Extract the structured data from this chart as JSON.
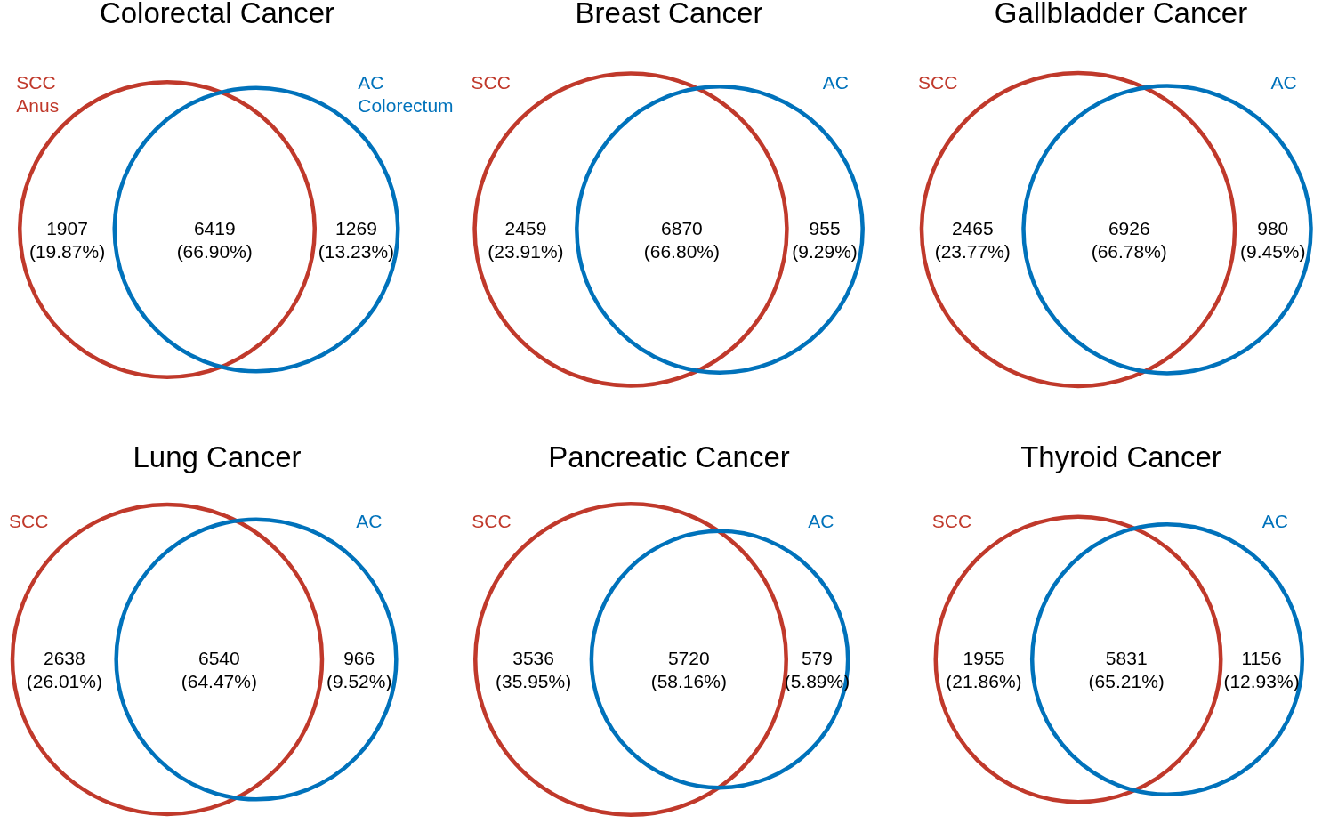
{
  "chart_data": [
    {
      "type": "other",
      "title": "Colorectal Cancer",
      "categories": [
        "SCC Anus",
        null,
        "AC Colorectum"
      ],
      "values": [
        1907,
        6419,
        1269
      ],
      "value_labels": [
        "1907 (19.87%)",
        "6419 (66.90%)",
        "1269 (13.23%)"
      ],
      "colors": [
        "#c0392b",
        null,
        "#0072bb"
      ]
    },
    {
      "type": "other",
      "title": "Breast Cancer",
      "categories": [
        "SCC",
        null,
        "AC"
      ],
      "values": [
        2459,
        6870,
        955
      ],
      "value_labels": [
        "2459 (23.91%)",
        "6870 (66.80%)",
        "955 (9.29%)"
      ],
      "colors": [
        "#c0392b",
        null,
        "#0072bb"
      ]
    },
    {
      "type": "other",
      "title": "Gallbladder Cancer",
      "categories": [
        "SCC",
        null,
        "AC"
      ],
      "values": [
        2465,
        6926,
        980
      ],
      "value_labels": [
        "2465 (23.77%)",
        "6926 (66.78%)",
        "980 (9.45%)"
      ],
      "colors": [
        "#c0392b",
        null,
        "#0072bb"
      ]
    },
    {
      "type": "other",
      "title": "Lung Cancer",
      "categories": [
        "SCC",
        null,
        "AC"
      ],
      "values": [
        2638,
        6540,
        966
      ],
      "value_labels": [
        "2638 (26.01%)",
        "6540 (64.47%)",
        "966 (9.52%)"
      ],
      "colors": [
        "#c0392b",
        null,
        "#0072bb"
      ]
    },
    {
      "type": "other",
      "title": "Pancreatic Cancer",
      "categories": [
        "SCC",
        null,
        "AC"
      ],
      "values": [
        3536,
        5720,
        579
      ],
      "value_labels": [
        "3536 (35.95%)",
        "5720 (58.16%)",
        "579 (5.89%)"
      ],
      "colors": [
        "#c0392b",
        null,
        "#0072bb"
      ]
    },
    {
      "type": "other",
      "title": "Thyroid Cancer",
      "categories": [
        "SCC",
        null,
        "AC"
      ],
      "values": [
        1955,
        5831,
        1156
      ],
      "value_labels": [
        "1955 (21.86%)",
        "5831 (65.21%)",
        "1156 (12.93%)"
      ],
      "colors": [
        "#c0392b",
        null,
        "#0072bb"
      ]
    }
  ]
}
